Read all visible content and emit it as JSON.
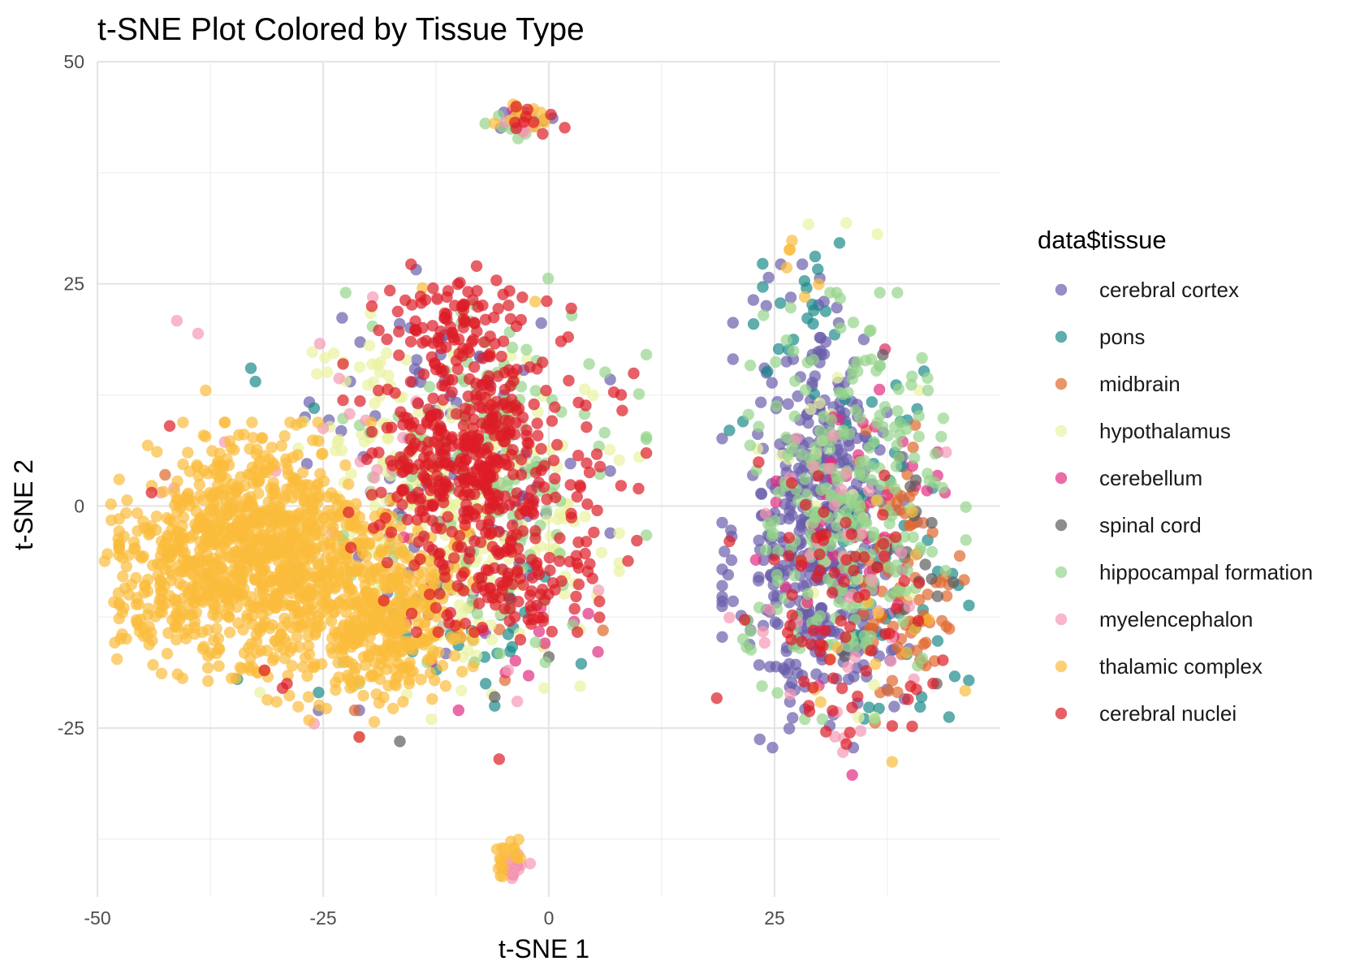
{
  "chart_data": {
    "type": "scatter",
    "title": "t-SNE Plot Colored by Tissue Type",
    "xlabel": "t-SNE 1",
    "ylabel": "t-SNE 2",
    "xlim": [
      -50,
      50
    ],
    "ylim": [
      -44,
      50
    ],
    "x_ticks": [
      -50,
      -25,
      0,
      25
    ],
    "y_ticks": [
      -25,
      0,
      25,
      50
    ],
    "x_tick_labels": [
      "-50",
      "-25",
      "0",
      "25"
    ],
    "y_tick_labels": [
      "-25",
      "0",
      "25",
      "50"
    ],
    "grid": true,
    "legend": {
      "title": "data$tissue",
      "position": "right"
    },
    "point_opacity": 0.7,
    "series": [
      {
        "name": "cerebral cortex",
        "color": "#6a5eab",
        "clusters": [
          {
            "cx": 30,
            "cy": -8,
            "sx": 4.5,
            "sy": 8,
            "n": 320
          },
          {
            "cx": 30,
            "cy": 8,
            "sx": 4,
            "sy": 8,
            "n": 160
          },
          {
            "cx": -10,
            "cy": 5,
            "sx": 7,
            "sy": 9,
            "n": 100
          },
          {
            "cx": -3,
            "cy": 43.5,
            "sx": 2,
            "sy": 0.8,
            "n": 8
          }
        ],
        "points": [
          [
            -25.5,
            -23
          ],
          [
            -21,
            -23
          ],
          [
            -27,
            10
          ],
          [
            -22,
            14
          ]
        ]
      },
      {
        "name": "pons",
        "color": "#1b8a8a",
        "clusters": [
          {
            "cx": 38,
            "cy": -4,
            "sx": 4,
            "sy": 10,
            "n": 45
          },
          {
            "cx": 28,
            "cy": 20,
            "sx": 3,
            "sy": 4,
            "n": 20
          },
          {
            "cx": -8,
            "cy": -13,
            "sx": 5,
            "sy": 4,
            "n": 25
          }
        ],
        "points": [
          [
            -33,
            15.5
          ],
          [
            -32.5,
            14
          ],
          [
            -26,
            11
          ],
          [
            -34.5,
            -19.5
          ],
          [
            -25.5,
            -21
          ],
          [
            -7,
            -20
          ],
          [
            -6,
            -22.5
          ],
          [
            21.5,
            9.5
          ],
          [
            20,
            8.5
          ],
          [
            42.5,
            2
          ]
        ]
      },
      {
        "name": "midbrain",
        "color": "#e0682e",
        "clusters": [
          {
            "cx": 40,
            "cy": -10,
            "sx": 2.5,
            "sy": 6,
            "n": 70
          },
          {
            "cx": 38,
            "cy": 2,
            "sx": 3,
            "sy": 4,
            "n": 15
          },
          {
            "cx": -12,
            "cy": -8,
            "sx": 6,
            "sy": 6,
            "n": 20
          }
        ],
        "points": [
          [
            6,
            -14
          ],
          [
            -42.5,
            3.5
          ],
          [
            -21.5,
            -23
          ],
          [
            -3.5,
            43
          ]
        ]
      },
      {
        "name": "hypothalamus",
        "color": "#e9f2a0",
        "clusters": [
          {
            "cx": -9,
            "cy": -2,
            "sx": 7,
            "sy": 8,
            "n": 240
          },
          {
            "cx": -20,
            "cy": 10,
            "sx": 4,
            "sy": 6,
            "n": 50
          },
          {
            "cx": 32,
            "cy": 5,
            "sx": 4,
            "sy": 12,
            "n": 25
          }
        ],
        "points": [
          [
            10,
            5.5
          ],
          [
            -13,
            -24
          ],
          [
            -21,
            -26
          ],
          [
            -32,
            -21
          ],
          [
            -0.5,
            -20.5
          ],
          [
            41,
            13
          ]
        ]
      },
      {
        "name": "cerebellum",
        "color": "#df2d82",
        "clusters": [
          {
            "cx": 34,
            "cy": -3,
            "sx": 5,
            "sy": 12,
            "n": 45
          },
          {
            "cx": -5,
            "cy": -12,
            "sx": 5,
            "sy": 5,
            "n": 15
          }
        ],
        "points": [
          [
            -4,
            -41.5
          ],
          [
            -4.5,
            -41
          ],
          [
            -3.5,
            -40.5
          ],
          [
            -4,
            44.5
          ],
          [
            -13,
            -17.5
          ],
          [
            -10,
            -23
          ]
        ]
      },
      {
        "name": "spinal cord",
        "color": "#5c5c5c",
        "clusters": [
          {
            "cx": 40,
            "cy": -5,
            "sx": 3,
            "sy": 7,
            "n": 18
          }
        ],
        "points": [
          [
            37,
            17
          ],
          [
            -16.5,
            -26.5
          ],
          [
            -6,
            -21.5
          ],
          [
            0,
            -17
          ],
          [
            41,
            -8.5
          ]
        ]
      },
      {
        "name": "hippocampal formation",
        "color": "#95d48c",
        "clusters": [
          {
            "cx": 33,
            "cy": 0,
            "sx": 5.5,
            "sy": 10,
            "n": 260
          },
          {
            "cx": -6,
            "cy": 4,
            "sx": 7,
            "sy": 9,
            "n": 150
          },
          {
            "cx": -3,
            "cy": 43,
            "sx": 2,
            "sy": 0.8,
            "n": 12
          }
        ],
        "points": [
          [
            -22.5,
            24
          ],
          [
            -21,
            -20
          ],
          [
            -16.5,
            -10
          ],
          [
            21.5,
            -15
          ],
          [
            42,
            13
          ]
        ]
      },
      {
        "name": "myelencephalon",
        "color": "#f598b4",
        "clusters": [
          {
            "cx": 32,
            "cy": -8,
            "sx": 5,
            "sy": 10,
            "n": 40
          },
          {
            "cx": -4,
            "cy": -40.5,
            "sx": 0.8,
            "sy": 0.8,
            "n": 12
          },
          {
            "cx": -3,
            "cy": 43,
            "sx": 1.5,
            "sy": 0.8,
            "n": 8
          },
          {
            "cx": -22,
            "cy": 5,
            "sx": 8,
            "sy": 10,
            "n": 20
          }
        ],
        "points": [
          [
            -19.5,
            23.5
          ],
          [
            -41.5,
            2
          ],
          [
            -43,
            1.5
          ],
          [
            -26,
            -24.5
          ],
          [
            -3.5,
            -22
          ],
          [
            5.5,
            -9.5
          ],
          [
            -4.5,
            -18.5
          ]
        ]
      },
      {
        "name": "thalamic complex",
        "color": "#fbbc3c",
        "clusters": [
          {
            "cx": -32,
            "cy": -5,
            "sx": 6.5,
            "sy": 6,
            "n": 900
          },
          {
            "cx": -18,
            "cy": -12,
            "sx": 4,
            "sy": 4.5,
            "n": 320
          },
          {
            "cx": -42,
            "cy": -8,
            "sx": 3,
            "sy": 5,
            "n": 130
          },
          {
            "cx": -25,
            "cy": -18,
            "sx": 6,
            "sy": 3,
            "n": 70
          },
          {
            "cx": -4.5,
            "cy": -39.5,
            "sx": 1,
            "sy": 1.2,
            "n": 18
          },
          {
            "cx": -3,
            "cy": 44,
            "sx": 1.8,
            "sy": 0.8,
            "n": 12
          },
          {
            "cx": 28,
            "cy": 26,
            "sx": 1.5,
            "sy": 2,
            "n": 6
          },
          {
            "cx": 36,
            "cy": -12,
            "sx": 6,
            "sy": 7,
            "n": 15
          }
        ],
        "points": [
          [
            -14,
            24.5
          ],
          [
            -1.5,
            23
          ],
          [
            -38,
            13
          ],
          [
            -48.5,
            0.2
          ],
          [
            -20.5,
            -17
          ]
        ]
      },
      {
        "name": "cerebral nuclei",
        "color": "#dd1c27",
        "clusters": [
          {
            "cx": -10,
            "cy": 5,
            "sx": 4,
            "sy": 4,
            "n": 200
          },
          {
            "cx": -10,
            "cy": 20,
            "sx": 4,
            "sy": 3,
            "n": 90
          },
          {
            "cx": -6,
            "cy": 5,
            "sx": 7,
            "sy": 8,
            "n": 250
          },
          {
            "cx": -4,
            "cy": -8,
            "sx": 4,
            "sy": 3,
            "n": 80
          },
          {
            "cx": 33,
            "cy": -12,
            "sx": 6,
            "sy": 8,
            "n": 80
          },
          {
            "cx": -2,
            "cy": 43.8,
            "sx": 2,
            "sy": 0.8,
            "n": 10
          }
        ],
        "points": [
          [
            -5.5,
            -28.5
          ],
          [
            -42,
            9
          ],
          [
            -44,
            1.5
          ],
          [
            -8,
            27
          ],
          [
            8,
            12.5
          ],
          [
            -21,
            -26
          ],
          [
            -29.5,
            -20.5
          ],
          [
            -31.5,
            -18.5
          ],
          [
            -29,
            -20
          ]
        ]
      }
    ]
  }
}
